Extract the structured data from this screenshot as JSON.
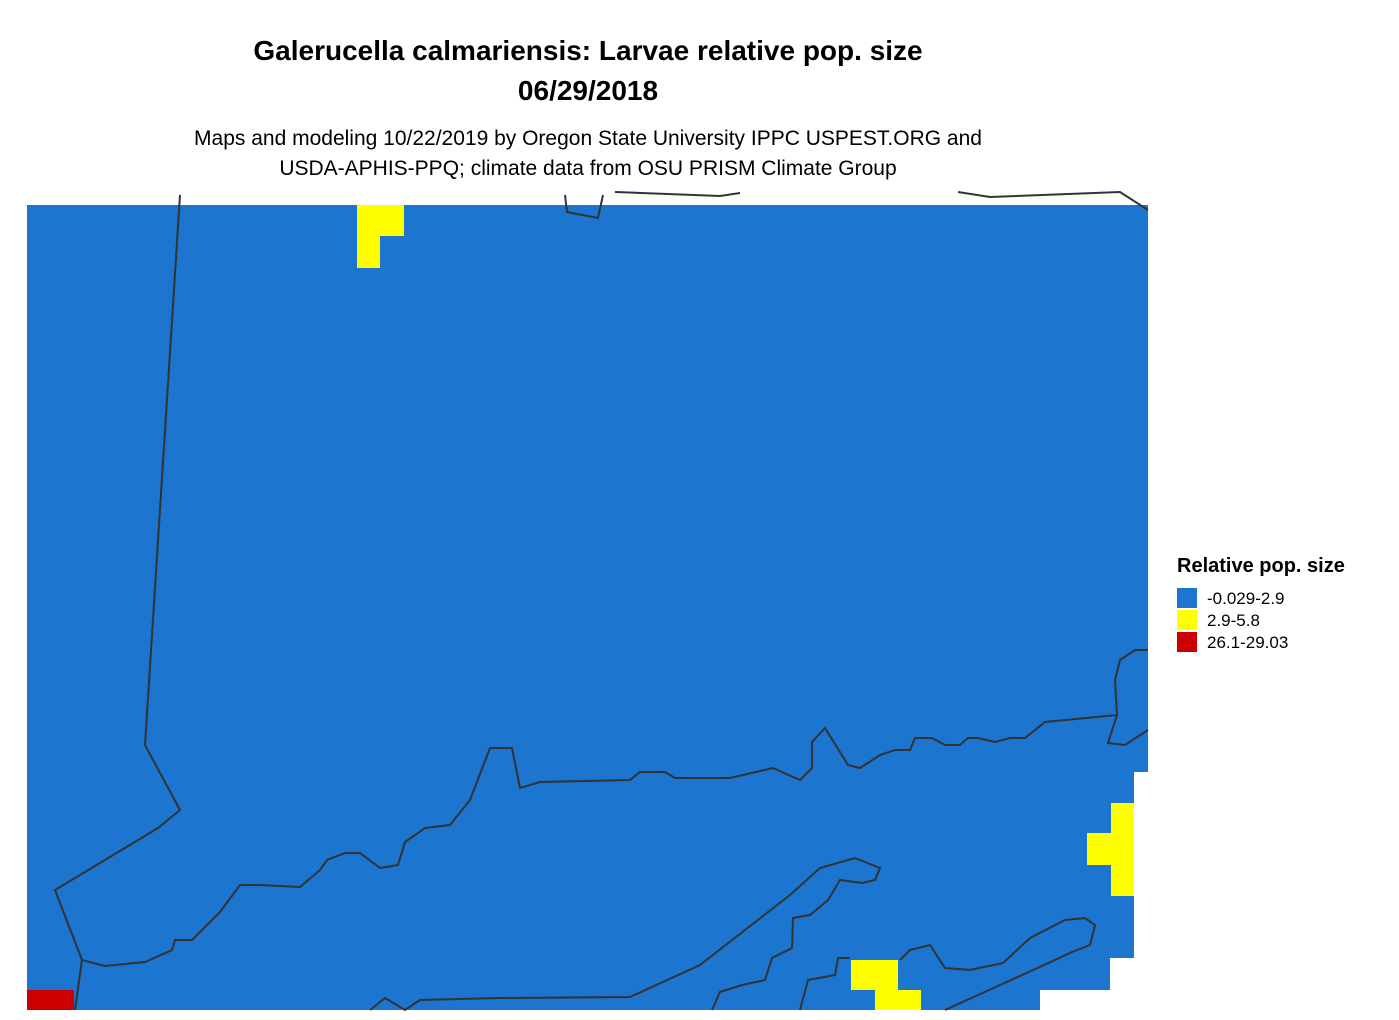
{
  "title": [
    "Galerucella calmariensis: Larvae relative pop. size",
    "06/29/2018"
  ],
  "subtitle": [
    "Maps and modeling 10/22/2019 by Oregon State University IPPC USPEST.ORG and",
    "USDA-APHIS-PPQ; climate data from OSU PRISM Climate Group"
  ],
  "legend": {
    "title": "Relative pop. size",
    "entries": [
      {
        "label": "-0.029-2.9",
        "color": "#1c75ce"
      },
      {
        "label": "2.9-5.8",
        "color": "#ffff00"
      },
      {
        "label": "26.1-29.03",
        "color": "#cc0000"
      }
    ]
  }
}
